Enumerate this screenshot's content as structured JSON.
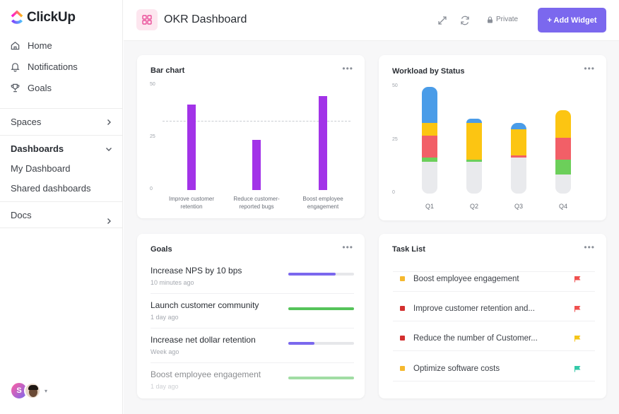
{
  "app": {
    "name": "ClickUp"
  },
  "sidebar": {
    "items": [
      {
        "label": "Home",
        "icon": "home-icon"
      },
      {
        "label": "Notifications",
        "icon": "bell-icon"
      },
      {
        "label": "Goals",
        "icon": "trophy-icon"
      }
    ],
    "spaces_label": "Spaces",
    "dashboards_label": "Dashboards",
    "dashboard_items": [
      "My Dashboard",
      "Shared dashboards"
    ],
    "docs_label": "Docs",
    "avatar_initial": "S"
  },
  "header": {
    "title": "OKR Dashboard",
    "private_label": "Private",
    "add_widget_label": "+ Add Widget"
  },
  "bar_card": {
    "title": "Bar chart",
    "chart_data": {
      "type": "bar",
      "categories": [
        "Improve customer retention",
        "Reduce customer-reported bugs",
        "Boost employee engagement"
      ],
      "category_lines": [
        [
          "Improve customer",
          "retention"
        ],
        [
          "Reduce customer-",
          "reported bugs"
        ],
        [
          "Boost employee",
          "engagement"
        ]
      ],
      "values": [
        41,
        24,
        45
      ],
      "ylim": [
        0,
        50
      ],
      "yticks": [
        "0",
        "25",
        "50"
      ],
      "reference_line": 33,
      "color": "#a233e8"
    }
  },
  "workload_card": {
    "title": "Workload by Status",
    "chart_data": {
      "type": "bar",
      "stacked": true,
      "categories": [
        "Q1",
        "Q2",
        "Q3",
        "Q4"
      ],
      "ylim": [
        0,
        50
      ],
      "yticks": [
        "0",
        "25",
        "50"
      ],
      "series": [
        {
          "color": "#e9eaed",
          "values": [
            15,
            15,
            17,
            9
          ]
        },
        {
          "color": "#6ccf5a",
          "values": [
            2,
            1,
            0,
            7
          ]
        },
        {
          "color": "#f25f67",
          "values": [
            10,
            0,
            1,
            10
          ]
        },
        {
          "color": "#fcc512",
          "values": [
            6,
            17,
            12,
            13
          ]
        },
        {
          "color": "#4a9ce8",
          "values": [
            17,
            2,
            3,
            0
          ]
        }
      ]
    }
  },
  "goals_card": {
    "title": "Goals",
    "goals": [
      {
        "name": "Increase NPS by 10 bps",
        "time": "10 minutes ago",
        "progress": 0.72,
        "color": "#7b68ee"
      },
      {
        "name": "Launch customer community",
        "time": "1 day ago",
        "progress": 1.0,
        "color": "#55c35a"
      },
      {
        "name": "Increase net dollar retention",
        "time": "Week ago",
        "progress": 0.4,
        "color": "#7b68ee"
      },
      {
        "name": "Boost employee engagement",
        "time": "1 day ago",
        "progress": 1.0,
        "color": "#55c35a"
      }
    ]
  },
  "tasks_card": {
    "title": "Task List",
    "tasks": [
      {
        "name": "Boost employee engagement",
        "dot_color": "#f5b82e",
        "flag_color": "#f0504f"
      },
      {
        "name": "Improve customer retention and...",
        "dot_color": "#d3302f",
        "flag_color": "#f0504f"
      },
      {
        "name": "Reduce the number of Customer...",
        "dot_color": "#d3302f",
        "flag_color": "#f5c518"
      },
      {
        "name": "Optimize software costs",
        "dot_color": "#f5b82e",
        "flag_color": "#33c9a8"
      }
    ]
  }
}
